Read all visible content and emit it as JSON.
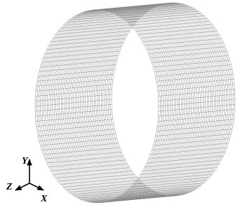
{
  "axes": {
    "y": "Y",
    "z": "Z",
    "x": "X"
  }
}
